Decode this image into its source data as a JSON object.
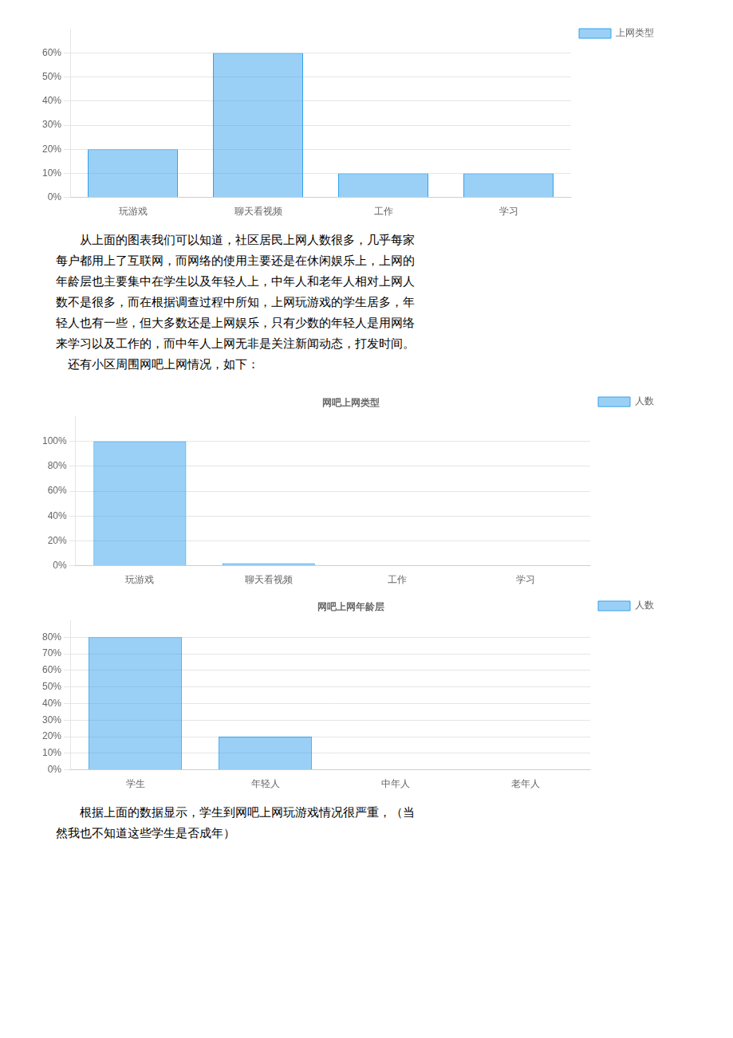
{
  "chart_data": [
    {
      "type": "bar",
      "categories": [
        "玩游戏",
        "聊天看视频",
        "工作",
        "学习"
      ],
      "series": [
        {
          "name": "上网类型",
          "values": [
            20,
            60,
            10,
            10
          ]
        }
      ],
      "ylim": [
        0,
        70
      ],
      "yticks": [
        {
          "value": 0,
          "label": "0%"
        },
        {
          "value": 10,
          "label": "10%"
        },
        {
          "value": 20,
          "label": "20%"
        },
        {
          "value": 30,
          "label": "30%"
        },
        {
          "value": 40,
          "label": "40%"
        },
        {
          "value": 50,
          "label": "50%"
        },
        {
          "value": 60,
          "label": "60%"
        }
      ],
      "grid": true,
      "legend": "right",
      "annotations": [
        "　　从上面的图表我们可以知道，社区居民上网人数很多，几乎每家",
        "每户都用上了互联网，而网络的使用主要还是在休闲娱乐上，上网的",
        "年龄层也主要集中在学生以及年轻人上，中年人和老年人相对上网人",
        "数不是很多，而在根据调查过程中所知，上网玩游戏的学生居多，年",
        "轻人也有一些，但大多数还是上网娱乐，只有少数的年轻人是用网络",
        "来学习以及工作的，而中年人上网无非是关注新闻动态，打发时间。",
        "　还有小区周围网吧上网情况，如下："
      ]
    },
    {
      "type": "bar",
      "title": "网吧上网类型",
      "categories": [
        "玩游戏",
        "聊天看视频",
        "工作",
        "学习"
      ],
      "series": [
        {
          "name": "人数",
          "values": [
            100,
            2,
            0,
            0
          ]
        }
      ],
      "ylim": [
        0,
        120
      ],
      "yticks": [
        {
          "value": 0,
          "label": "0%"
        },
        {
          "value": 20,
          "label": "20%"
        },
        {
          "value": 40,
          "label": "40%"
        },
        {
          "value": 60,
          "label": "60%"
        },
        {
          "value": 80,
          "label": "80%"
        },
        {
          "value": 100,
          "label": "100%"
        }
      ],
      "grid": true,
      "legend": "right"
    },
    {
      "type": "bar",
      "title": "网吧上网年龄层",
      "categories": [
        "学生",
        "年轻人",
        "中年人",
        "老年人"
      ],
      "series": [
        {
          "name": "人数",
          "values": [
            80,
            20,
            0,
            0
          ]
        }
      ],
      "ylim": [
        0,
        90
      ],
      "yticks": [
        {
          "value": 0,
          "label": "0%"
        },
        {
          "value": 10,
          "label": "10%"
        },
        {
          "value": 20,
          "label": "20%"
        },
        {
          "value": 30,
          "label": "30%"
        },
        {
          "value": 40,
          "label": "40%"
        },
        {
          "value": 50,
          "label": "50%"
        },
        {
          "value": 60,
          "label": "60%"
        },
        {
          "value": 70,
          "label": "70%"
        },
        {
          "value": 80,
          "label": "80%"
        }
      ],
      "grid": true,
      "legend": "right",
      "annotations": [
        "　　根据上面的数据显示，学生到网吧上网玩游戏情况很严重，（当",
        "然我也不知道这些学生是否成年）"
      ]
    }
  ]
}
